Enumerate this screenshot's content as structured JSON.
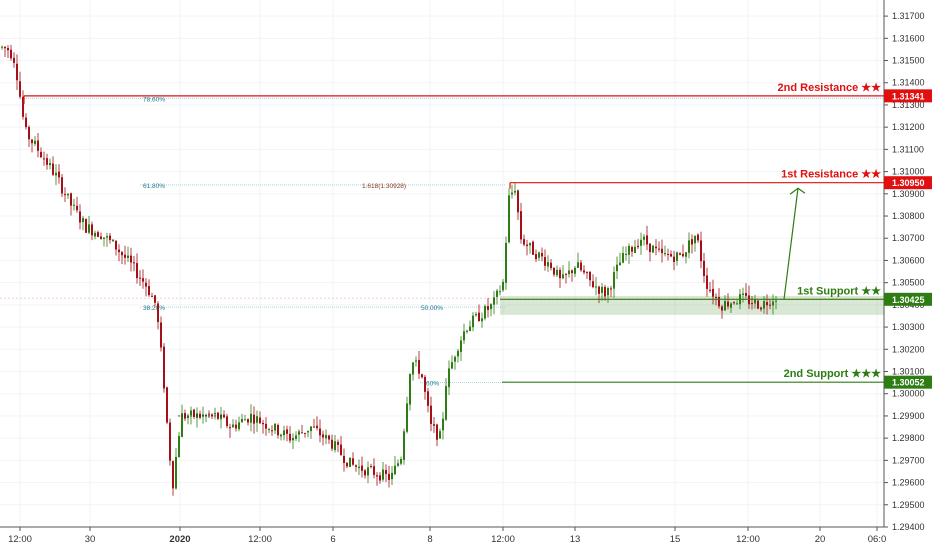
{
  "chart_data": {
    "type": "candlestick",
    "instrument_note": "",
    "y_axis": {
      "ticks": [
        "1.31700",
        "1.31600",
        "1.31500",
        "1.31400",
        "1.31300",
        "1.31200",
        "1.31100",
        "1.31000",
        "1.30900",
        "1.30800",
        "1.30700",
        "1.30600",
        "1.30500",
        "1.30400",
        "1.30300",
        "1.30200",
        "1.30100",
        "1.30000",
        "1.29900",
        "1.29800",
        "1.29700",
        "1.29600",
        "1.29500",
        "1.29400"
      ],
      "ylim": [
        1.294,
        1.3175
      ]
    },
    "x_axis": {
      "ticks": [
        "12:00",
        "30",
        "2020",
        "12:00",
        "6",
        "8",
        "12:00",
        "13",
        "15",
        "12:00",
        "20",
        "06:0"
      ]
    },
    "levels": [
      {
        "name": "2nd Resistance ★★",
        "price": 1.31341,
        "price_label": "1.31341",
        "color": "#e01010"
      },
      {
        "name": "1st Resistance ★★",
        "price": 1.3095,
        "price_label": "1.30950",
        "color": "#e01010"
      },
      {
        "name": "1st Support ★★",
        "price": 1.30425,
        "price_label": "1.30425",
        "color": "#2e7d14"
      },
      {
        "name": "2nd Support ★★★",
        "price": 1.30052,
        "price_label": "1.30052",
        "color": "#2e7d14"
      }
    ],
    "fib_labels": [
      {
        "text": "78.60%",
        "price": 1.3133
      },
      {
        "text": "61.80%",
        "price": 1.3094
      },
      {
        "text": "38.20%",
        "price": 1.3039
      },
      {
        "text": "50.00%",
        "price": 1.3039
      },
      {
        "text": "1.618(1.30928)",
        "price": 1.3094
      },
      {
        "text": "60%",
        "price": 1.3005
      }
    ],
    "support_zone": {
      "from": 1.30355,
      "to": 1.3044,
      "color": "#2e7d14"
    },
    "colors": {
      "up": "#2e7d14",
      "down": "#a50f17",
      "resistance": "#e01010",
      "support": "#2e7d14",
      "fib": "#1e7a8c"
    },
    "price_path_knots": [
      [
        0,
        1.3156
      ],
      [
        8,
        1.3155
      ],
      [
        14,
        1.315
      ],
      [
        24,
        1.3118
      ],
      [
        40,
        1.3108
      ],
      [
        55,
        1.3098
      ],
      [
        70,
        1.3085
      ],
      [
        85,
        1.3075
      ],
      [
        100,
        1.3072
      ],
      [
        115,
        1.3066
      ],
      [
        130,
        1.3058
      ],
      [
        145,
        1.3049
      ],
      [
        155,
        1.304
      ],
      [
        162,
        1.301
      ],
      [
        168,
        1.2975
      ],
      [
        172,
        1.296
      ],
      [
        180,
        1.299
      ],
      [
        215,
        1.299
      ],
      [
        230,
        1.2985
      ],
      [
        250,
        1.299
      ],
      [
        270,
        1.2985
      ],
      [
        290,
        1.298
      ],
      [
        310,
        1.2985
      ],
      [
        330,
        1.2978
      ],
      [
        350,
        1.2968
      ],
      [
        370,
        1.2965
      ],
      [
        390,
        1.2962
      ],
      [
        400,
        1.2972
      ],
      [
        410,
        1.3015
      ],
      [
        420,
        1.301
      ],
      [
        430,
        1.2985
      ],
      [
        440,
        1.298
      ],
      [
        445,
        1.3005
      ],
      [
        455,
        1.302
      ],
      [
        465,
        1.303
      ],
      [
        478,
        1.3035
      ],
      [
        492,
        1.304
      ],
      [
        502,
        1.305
      ],
      [
        508,
        1.3088
      ],
      [
        514,
        1.3093
      ],
      [
        520,
        1.307
      ],
      [
        530,
        1.3065
      ],
      [
        550,
        1.3058
      ],
      [
        560,
        1.305
      ],
      [
        575,
        1.3058
      ],
      [
        590,
        1.305
      ],
      [
        605,
        1.3045
      ],
      [
        620,
        1.306
      ],
      [
        640,
        1.307
      ],
      [
        660,
        1.3062
      ],
      [
        680,
        1.3062
      ],
      [
        695,
        1.3072
      ],
      [
        705,
        1.305
      ],
      [
        720,
        1.304
      ],
      [
        740,
        1.3043
      ],
      [
        760,
        1.304
      ],
      [
        775,
        1.3044
      ]
    ],
    "projection": [
      [
        784,
        1.30425
      ],
      [
        798,
        1.30925
      ]
    ]
  }
}
